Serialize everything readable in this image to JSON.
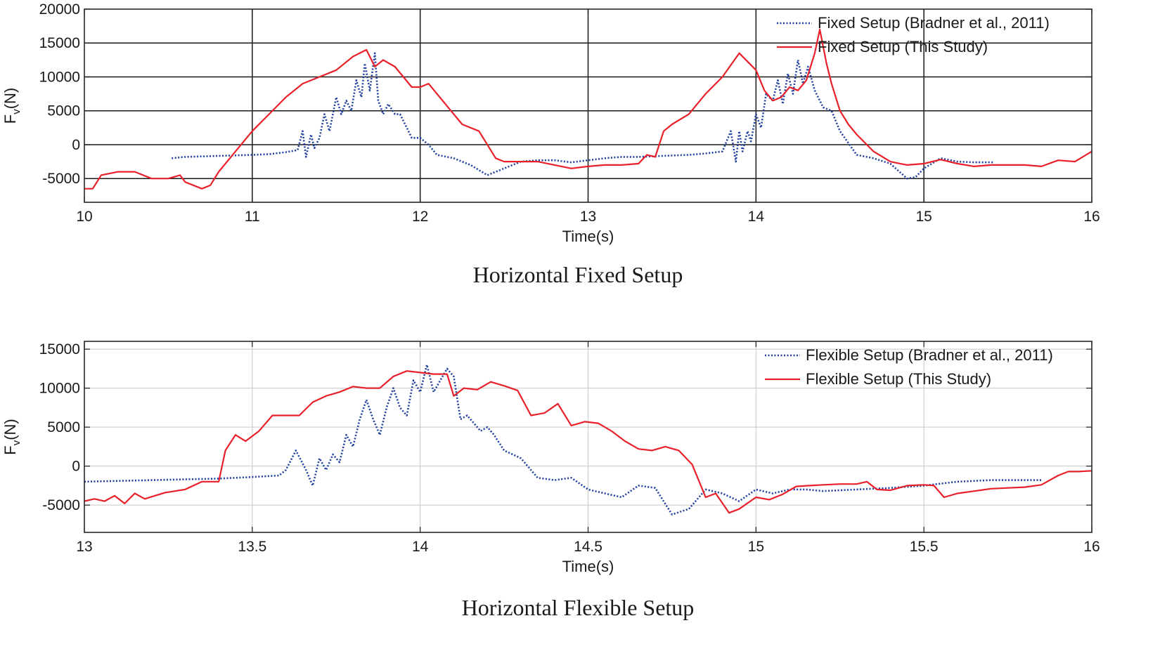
{
  "chart_data": [
    {
      "type": "line",
      "caption": "Horizontal Fixed Setup",
      "xlabel": "Time(s)",
      "ylabel_main": "F",
      "ylabel_sub": "v",
      "ylabel_tail": "(N)",
      "xlim": [
        10,
        16
      ],
      "ylim": [
        -8500,
        20000
      ],
      "xticks": [
        10,
        11,
        12,
        13,
        14,
        15,
        16
      ],
      "yticks": [
        -5000,
        0,
        5000,
        10000,
        15000,
        20000
      ],
      "grid": "major",
      "legend_position": "top-right",
      "series": [
        {
          "name": "Fixed Setup  (Bradner et al., 2011)",
          "style": "dotted",
          "color": "#1f3f9f",
          "x": [
            10.52,
            10.6,
            11.0,
            11.1,
            11.2,
            11.27,
            11.3,
            11.32,
            11.35,
            11.37,
            11.4,
            11.43,
            11.46,
            11.5,
            11.53,
            11.56,
            11.59,
            11.62,
            11.65,
            11.67,
            11.7,
            11.73,
            11.75,
            11.78,
            11.81,
            11.85,
            11.88,
            11.92,
            11.95,
            12.0,
            12.05,
            12.1,
            12.2,
            12.3,
            12.4,
            12.5,
            12.6,
            12.7,
            12.8,
            12.9,
            13.0,
            13.1,
            13.2,
            13.3,
            13.4,
            13.5,
            13.6,
            13.7,
            13.8,
            13.85,
            13.88,
            13.9,
            13.92,
            13.95,
            13.97,
            14.0,
            14.03,
            14.06,
            14.1,
            14.13,
            14.16,
            14.19,
            14.22,
            14.25,
            14.28,
            14.31,
            14.35,
            14.4,
            14.45,
            14.5,
            14.6,
            14.7,
            14.8,
            14.9,
            14.95,
            15.0,
            15.1,
            15.2,
            15.3,
            15.42
          ],
          "y": [
            -2000,
            -1800,
            -1500,
            -1400,
            -1100,
            -800,
            2000,
            -1800,
            1500,
            -500,
            1000,
            4500,
            2000,
            7000,
            4500,
            6500,
            5000,
            9500,
            7000,
            12000,
            8000,
            13500,
            6500,
            4500,
            6000,
            4500,
            4500,
            2500,
            1000,
            1000,
            0,
            -1500,
            -2000,
            -3000,
            -4500,
            -3500,
            -2500,
            -2300,
            -2300,
            -2600,
            -2300,
            -2000,
            -1800,
            -1800,
            -1700,
            -1600,
            -1500,
            -1300,
            -1000,
            2000,
            -2500,
            2000,
            -1000,
            2000,
            500,
            4500,
            2500,
            7500,
            6500,
            9500,
            6000,
            10500,
            7500,
            12500,
            9000,
            11500,
            8000,
            5500,
            5000,
            2000,
            -1500,
            -2000,
            -2800,
            -5000,
            -4800,
            -3500,
            -2000,
            -2500,
            -2600,
            -2600
          ]
        },
        {
          "name": "Fixed Setup (This Study)",
          "style": "solid",
          "color": "#e8202a",
          "x": [
            10.0,
            10.05,
            10.1,
            10.2,
            10.3,
            10.4,
            10.5,
            10.57,
            10.6,
            10.7,
            10.75,
            10.8,
            10.9,
            11.0,
            11.1,
            11.2,
            11.3,
            11.4,
            11.5,
            11.6,
            11.68,
            11.73,
            11.78,
            11.85,
            11.95,
            12.0,
            12.05,
            12.15,
            12.25,
            12.35,
            12.45,
            12.5,
            12.6,
            12.7,
            12.8,
            12.9,
            13.0,
            13.1,
            13.2,
            13.3,
            13.35,
            13.4,
            13.45,
            13.5,
            13.6,
            13.7,
            13.8,
            13.9,
            14.0,
            14.05,
            14.1,
            14.15,
            14.2,
            14.25,
            14.3,
            14.35,
            14.38,
            14.42,
            14.45,
            14.5,
            14.55,
            14.6,
            14.7,
            14.8,
            14.9,
            15.0,
            15.1,
            15.2,
            15.3,
            15.4,
            15.5,
            15.6,
            15.7,
            15.8,
            15.9,
            16.0
          ],
          "y": [
            -6500,
            -6500,
            -4500,
            -4000,
            -4000,
            -5000,
            -5000,
            -4500,
            -5500,
            -6500,
            -6000,
            -4000,
            -1000,
            2000,
            4500,
            7000,
            9000,
            10000,
            11000,
            13000,
            14000,
            11500,
            12500,
            11500,
            8500,
            8500,
            9000,
            6000,
            3000,
            2000,
            -2000,
            -2500,
            -2500,
            -2500,
            -3000,
            -3500,
            -3200,
            -3000,
            -3000,
            -2800,
            -1500,
            -1800,
            2000,
            3000,
            4500,
            7500,
            10000,
            13500,
            11000,
            8000,
            6500,
            7000,
            8500,
            8000,
            9500,
            13500,
            17000,
            12000,
            9000,
            5000,
            3000,
            1500,
            -1000,
            -2500,
            -3000,
            -2800,
            -2200,
            -2800,
            -3200,
            -3000,
            -3000,
            -3000,
            -3200,
            -2300,
            -2500,
            -1000
          ]
        }
      ]
    },
    {
      "type": "line",
      "caption": "Horizontal Flexible Setup",
      "xlabel": "Time(s)",
      "ylabel_main": "F",
      "ylabel_sub": "v",
      "ylabel_tail": "(N)",
      "xlim": [
        13,
        16
      ],
      "ylim": [
        -8500,
        16000
      ],
      "xticks": [
        13,
        13.5,
        14,
        14.5,
        15,
        15.5,
        16
      ],
      "yticks": [
        -5000,
        0,
        5000,
        10000,
        15000
      ],
      "grid": "major",
      "legend_position": "top-right",
      "series": [
        {
          "name": "Flexible Setup (Bradner et al., 2011)",
          "style": "dotted",
          "color": "#1f3f9f",
          "x": [
            13.0,
            13.2,
            13.4,
            13.5,
            13.58,
            13.6,
            13.63,
            13.66,
            13.68,
            13.7,
            13.72,
            13.74,
            13.76,
            13.78,
            13.8,
            13.82,
            13.84,
            13.86,
            13.88,
            13.9,
            13.92,
            13.94,
            13.96,
            13.98,
            14.0,
            14.02,
            14.04,
            14.06,
            14.08,
            14.1,
            14.12,
            14.14,
            14.16,
            14.18,
            14.2,
            14.22,
            14.25,
            14.3,
            14.35,
            14.4,
            14.45,
            14.5,
            14.55,
            14.6,
            14.65,
            14.7,
            14.75,
            14.8,
            14.85,
            14.9,
            14.95,
            15.0,
            15.05,
            15.1,
            15.15,
            15.2,
            15.3,
            15.4,
            15.5,
            15.6,
            15.7,
            15.85
          ],
          "y": [
            -2000,
            -1800,
            -1600,
            -1400,
            -1200,
            -500,
            2000,
            -500,
            -2500,
            1000,
            -500,
            1500,
            500,
            4000,
            2500,
            6000,
            8500,
            6000,
            4000,
            7500,
            10000,
            7500,
            6500,
            11000,
            9500,
            13000,
            9500,
            11000,
            12500,
            11500,
            6000,
            6500,
            5500,
            4500,
            5000,
            4000,
            2000,
            1000,
            -1500,
            -1800,
            -1500,
            -3000,
            -3500,
            -4000,
            -2500,
            -2800,
            -6200,
            -5500,
            -3000,
            -3500,
            -4500,
            -3000,
            -3500,
            -3000,
            -3000,
            -3200,
            -3000,
            -2800,
            -2500,
            -2000,
            -1800,
            -1800
          ]
        },
        {
          "name": "Flexible Setup (This Study)",
          "style": "solid",
          "color": "#e8202a",
          "x": [
            13.0,
            13.03,
            13.06,
            13.09,
            13.12,
            13.15,
            13.18,
            13.21,
            13.24,
            13.27,
            13.3,
            13.35,
            13.4,
            13.42,
            13.45,
            13.48,
            13.52,
            13.56,
            13.6,
            13.64,
            13.68,
            13.72,
            13.76,
            13.8,
            13.84,
            13.88,
            13.92,
            13.96,
            14.0,
            14.04,
            14.08,
            14.1,
            14.13,
            14.17,
            14.21,
            14.25,
            14.29,
            14.33,
            14.37,
            14.41,
            14.45,
            14.49,
            14.53,
            14.57,
            14.61,
            14.65,
            14.69,
            14.73,
            14.77,
            14.81,
            14.85,
            14.88,
            14.92,
            14.95,
            15.0,
            15.04,
            15.08,
            15.12,
            15.16,
            15.2,
            15.25,
            15.3,
            15.33,
            15.36,
            15.4,
            15.45,
            15.5,
            15.53,
            15.56,
            15.6,
            15.65,
            15.7,
            15.75,
            15.8,
            15.85,
            15.9,
            15.93,
            15.96,
            16.0
          ],
          "y": [
            -4500,
            -4200,
            -4500,
            -3800,
            -4800,
            -3500,
            -4200,
            -3800,
            -3400,
            -3200,
            -3000,
            -2000,
            -2000,
            2000,
            4000,
            3200,
            4500,
            6500,
            6500,
            6500,
            8200,
            9000,
            9500,
            10200,
            10000,
            10000,
            11500,
            12200,
            12000,
            11800,
            11800,
            9000,
            10000,
            9800,
            10800,
            10300,
            9700,
            6500,
            6800,
            8000,
            5200,
            5700,
            5500,
            4500,
            3200,
            2200,
            2000,
            2500,
            2000,
            200,
            -4000,
            -3500,
            -6000,
            -5500,
            -4000,
            -4300,
            -3600,
            -2600,
            -2500,
            -2400,
            -2300,
            -2300,
            -2000,
            -3000,
            -3100,
            -2500,
            -2400,
            -2500,
            -4000,
            -3500,
            -3200,
            -2900,
            -2800,
            -2700,
            -2400,
            -1200,
            -700,
            -700,
            -600
          ]
        }
      ]
    }
  ]
}
